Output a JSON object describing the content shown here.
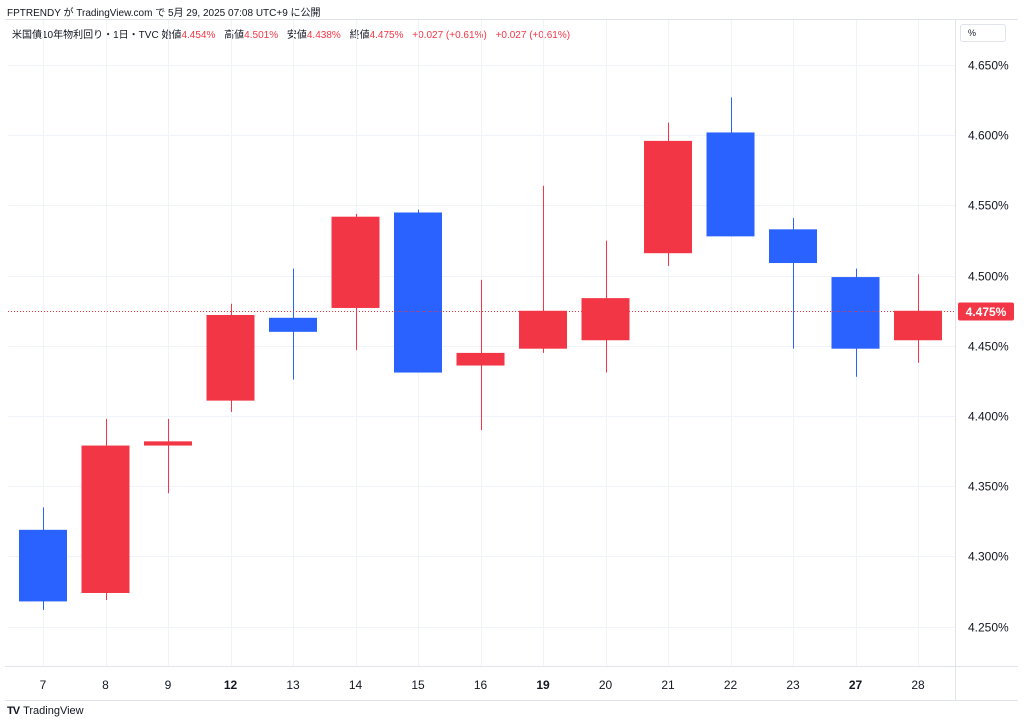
{
  "header": {
    "text": "FPTRENDY が TradingView.com で 5月 29, 2025 07:08 UTC+9 に公開"
  },
  "legend": {
    "symbol": "米国債10年物利回り・1日・TVC",
    "open_label": "始値",
    "open": "4.454%",
    "high_label": "高値",
    "high": "4.501%",
    "low_label": "安値",
    "low": "4.438%",
    "close_label": "終値",
    "close": "4.475%",
    "change": "+0.027 (+0.61%)",
    "change2": "+0.027 (+0.61%)"
  },
  "scale_unit": "%",
  "footer": {
    "brand": "TradingView",
    "logo": "TV"
  },
  "colors": {
    "up": "#f23645",
    "down": "#2962ff",
    "grid": "#f0f3fa",
    "last_line": "#f23645"
  },
  "chart_data": {
    "type": "candlestick",
    "title": "米国債10年物利回り・1日・TVC",
    "ylim": [
      4.222,
      4.665
    ],
    "yticks": [
      4.25,
      4.3,
      4.35,
      4.4,
      4.45,
      4.5,
      4.55,
      4.6,
      4.65
    ],
    "ytick_labels": [
      "4.250%",
      "4.300%",
      "4.350%",
      "4.400%",
      "4.450%",
      "4.500%",
      "4.550%",
      "4.600%",
      "4.650%"
    ],
    "last_price": 4.475,
    "last_price_label": "4.475%",
    "x_labels": [
      "7",
      "8",
      "9",
      "12",
      "13",
      "14",
      "15",
      "16",
      "19",
      "20",
      "21",
      "22",
      "23",
      "27",
      "28"
    ],
    "bold_labels": [
      "12",
      "19",
      "27"
    ],
    "candles": [
      {
        "date": "7",
        "open": 4.319,
        "high": 4.335,
        "low": 4.262,
        "close": 4.268,
        "dir": "down"
      },
      {
        "date": "8",
        "open": 4.274,
        "high": 4.398,
        "low": 4.269,
        "close": 4.379,
        "dir": "up"
      },
      {
        "date": "9",
        "open": 4.379,
        "high": 4.398,
        "low": 4.345,
        "close": 4.382,
        "dir": "up"
      },
      {
        "date": "12",
        "open": 4.411,
        "high": 4.48,
        "low": 4.403,
        "close": 4.472,
        "dir": "up"
      },
      {
        "date": "13",
        "open": 4.47,
        "high": 4.505,
        "low": 4.426,
        "close": 4.46,
        "dir": "down"
      },
      {
        "date": "14",
        "open": 4.477,
        "high": 4.544,
        "low": 4.447,
        "close": 4.542,
        "dir": "up"
      },
      {
        "date": "15",
        "open": 4.545,
        "high": 4.547,
        "low": 4.431,
        "close": 4.431,
        "dir": "down"
      },
      {
        "date": "16",
        "open": 4.436,
        "high": 4.497,
        "low": 4.39,
        "close": 4.445,
        "dir": "up"
      },
      {
        "date": "19",
        "open": 4.448,
        "high": 4.564,
        "low": 4.445,
        "close": 4.475,
        "dir": "up"
      },
      {
        "date": "20",
        "open": 4.454,
        "high": 4.525,
        "low": 4.431,
        "close": 4.484,
        "dir": "up"
      },
      {
        "date": "21",
        "open": 4.516,
        "high": 4.609,
        "low": 4.507,
        "close": 4.596,
        "dir": "up"
      },
      {
        "date": "22",
        "open": 4.602,
        "high": 4.627,
        "low": 4.528,
        "close": 4.528,
        "dir": "down"
      },
      {
        "date": "23",
        "open": 4.533,
        "high": 4.541,
        "low": 4.448,
        "close": 4.509,
        "dir": "down"
      },
      {
        "date": "27",
        "open": 4.499,
        "high": 4.505,
        "low": 4.428,
        "close": 4.448,
        "dir": "down"
      },
      {
        "date": "28",
        "open": 4.454,
        "high": 4.501,
        "low": 4.438,
        "close": 4.475,
        "dir": "up"
      }
    ]
  }
}
